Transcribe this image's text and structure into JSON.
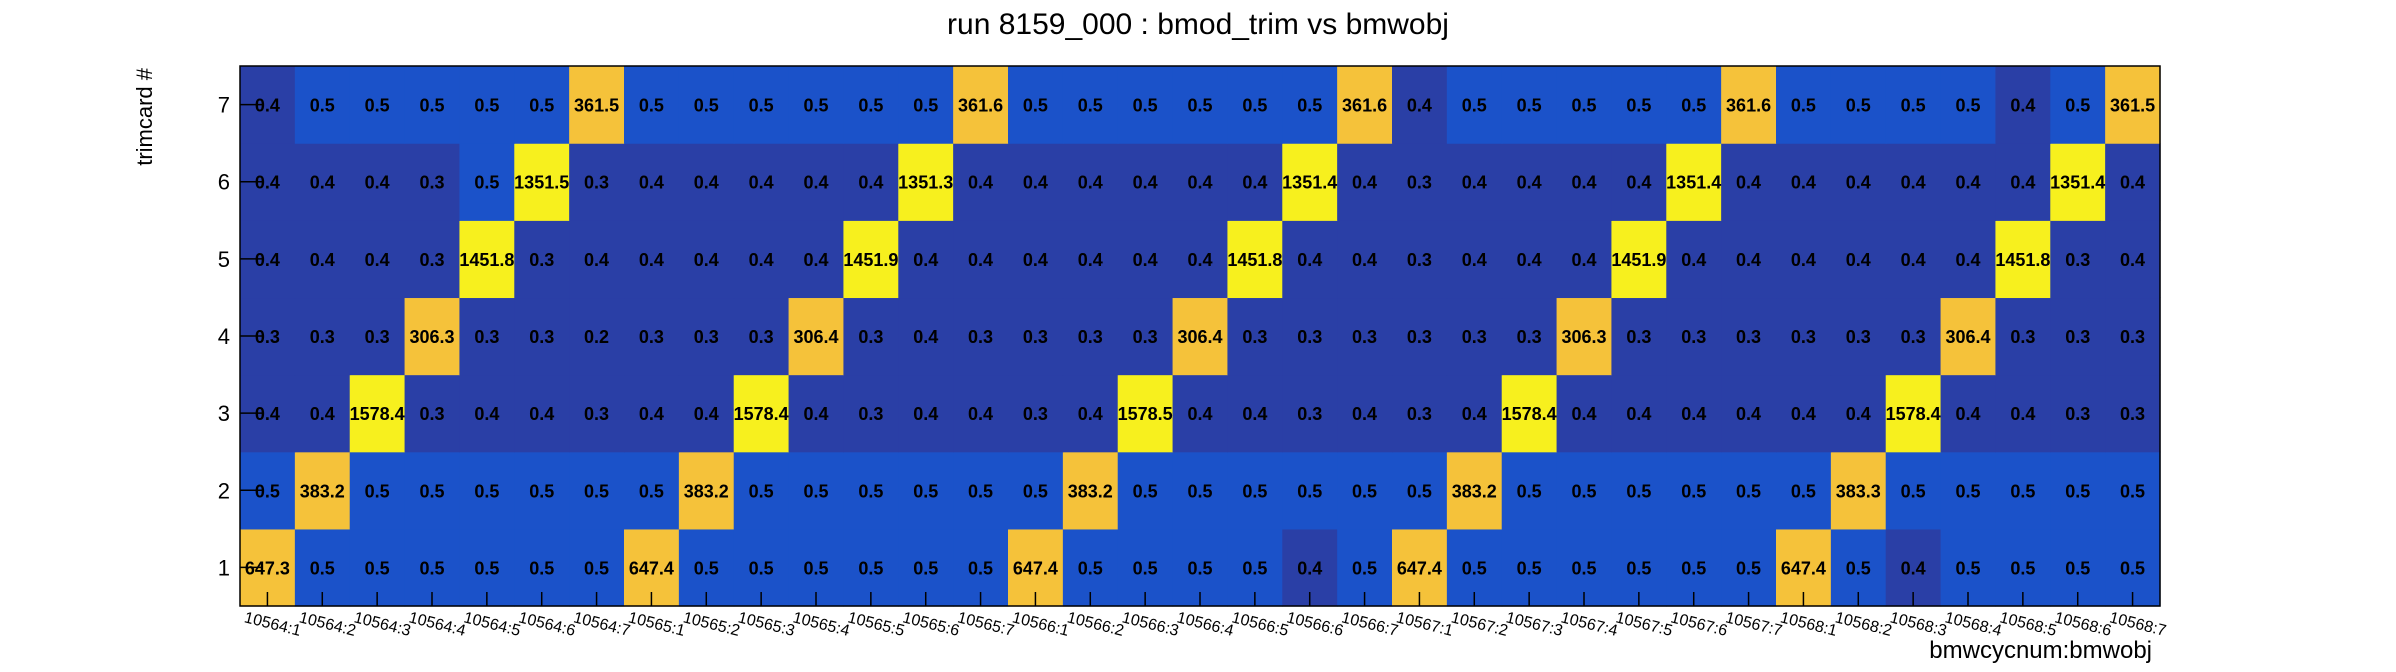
{
  "chart_data": {
    "type": "heatmap",
    "title": "run 8159_000 : bmod_trim vs bmwobj",
    "xlabel": "bmwcycnum:bmwobj",
    "ylabel": "trimcard #",
    "x_categories": [
      "10564:1",
      "10564:2",
      "10564:3",
      "10564:4",
      "10564:5",
      "10564:6",
      "10564:7",
      "10565:1",
      "10565:2",
      "10565:3",
      "10565:4",
      "10565:5",
      "10565:6",
      "10565:7",
      "10566:1",
      "10566:2",
      "10566:3",
      "10566:4",
      "10566:5",
      "10566:6",
      "10566:7",
      "10567:1",
      "10567:2",
      "10567:3",
      "10567:4",
      "10567:5",
      "10567:6",
      "10567:7",
      "10568:1",
      "10568:2",
      "10568:3",
      "10568:4",
      "10568:5",
      "10568:6",
      "10568:7"
    ],
    "y_categories": [
      "1",
      "2",
      "3",
      "4",
      "5",
      "6",
      "7"
    ],
    "rows": [
      {
        "y": "1",
        "values": [
          "647.3",
          "0.5",
          "0.5",
          "0.5",
          "0.5",
          "0.5",
          "0.5",
          "647.4",
          "0.5",
          "0.5",
          "0.5",
          "0.5",
          "0.5",
          "0.5",
          "647.4",
          "0.5",
          "0.5",
          "0.5",
          "0.5",
          "0.4",
          "0.5",
          "647.4",
          "0.5",
          "0.5",
          "0.5",
          "0.5",
          "0.5",
          "0.5",
          "647.4",
          "0.5",
          "0.4",
          "0.5",
          "0.5",
          "0.5",
          "0.5"
        ]
      },
      {
        "y": "2",
        "values": [
          "0.5",
          "383.2",
          "0.5",
          "0.5",
          "0.5",
          "0.5",
          "0.5",
          "0.5",
          "383.2",
          "0.5",
          "0.5",
          "0.5",
          "0.5",
          "0.5",
          "0.5",
          "383.2",
          "0.5",
          "0.5",
          "0.5",
          "0.5",
          "0.5",
          "0.5",
          "383.2",
          "0.5",
          "0.5",
          "0.5",
          "0.5",
          "0.5",
          "0.5",
          "383.3",
          "0.5",
          "0.5",
          "0.5",
          "0.5",
          "0.5"
        ]
      },
      {
        "y": "3",
        "values": [
          "0.4",
          "0.4",
          "1578.4",
          "0.3",
          "0.4",
          "0.4",
          "0.3",
          "0.4",
          "0.4",
          "1578.4",
          "0.4",
          "0.3",
          "0.4",
          "0.4",
          "0.3",
          "0.4",
          "1578.5",
          "0.4",
          "0.4",
          "0.3",
          "0.4",
          "0.3",
          "0.4",
          "1578.4",
          "0.4",
          "0.4",
          "0.4",
          "0.4",
          "0.4",
          "0.4",
          "1578.4",
          "0.4",
          "0.4",
          "0.3",
          "0.3"
        ]
      },
      {
        "y": "4",
        "values": [
          "0.3",
          "0.3",
          "0.3",
          "306.3",
          "0.3",
          "0.3",
          "0.2",
          "0.3",
          "0.3",
          "0.3",
          "306.4",
          "0.3",
          "0.4",
          "0.3",
          "0.3",
          "0.3",
          "0.3",
          "306.4",
          "0.3",
          "0.3",
          "0.3",
          "0.3",
          "0.3",
          "0.3",
          "306.3",
          "0.3",
          "0.3",
          "0.3",
          "0.3",
          "0.3",
          "0.3",
          "306.4",
          "0.3",
          "0.3",
          "0.3"
        ]
      },
      {
        "y": "5",
        "values": [
          "0.4",
          "0.4",
          "0.4",
          "0.3",
          "1451.8",
          "0.3",
          "0.4",
          "0.4",
          "0.4",
          "0.4",
          "0.4",
          "1451.9",
          "0.4",
          "0.4",
          "0.4",
          "0.4",
          "0.4",
          "0.4",
          "1451.8",
          "0.4",
          "0.4",
          "0.3",
          "0.4",
          "0.4",
          "0.4",
          "1451.9",
          "0.4",
          "0.4",
          "0.4",
          "0.4",
          "0.4",
          "0.4",
          "1451.8",
          "0.3",
          "0.4"
        ]
      },
      {
        "y": "6",
        "values": [
          "0.4",
          "0.4",
          "0.4",
          "0.3",
          "0.5",
          "1351.5",
          "0.3",
          "0.4",
          "0.4",
          "0.4",
          "0.4",
          "0.4",
          "1351.3",
          "0.4",
          "0.4",
          "0.4",
          "0.4",
          "0.4",
          "0.4",
          "1351.4",
          "0.4",
          "0.3",
          "0.4",
          "0.4",
          "0.4",
          "0.4",
          "1351.4",
          "0.4",
          "0.4",
          "0.4",
          "0.4",
          "0.4",
          "0.4",
          "1351.4",
          "0.4"
        ]
      },
      {
        "y": "7",
        "values": [
          "0.4",
          "0.5",
          "0.5",
          "0.5",
          "0.5",
          "0.5",
          "361.5",
          "0.5",
          "0.5",
          "0.5",
          "0.5",
          "0.5",
          "0.5",
          "361.6",
          "0.5",
          "0.5",
          "0.5",
          "0.5",
          "0.5",
          "0.5",
          "361.6",
          "0.4",
          "0.5",
          "0.5",
          "0.5",
          "0.5",
          "0.5",
          "361.6",
          "0.5",
          "0.5",
          "0.5",
          "0.5",
          "0.4",
          "0.5",
          "361.5"
        ]
      }
    ],
    "colors": {
      "low": "#2a3fa6",
      "mid": "#1b52c9",
      "peak_mid": "#f5c23a",
      "peak_high": "#f7f01e"
    },
    "grid": false,
    "legend": "none"
  }
}
